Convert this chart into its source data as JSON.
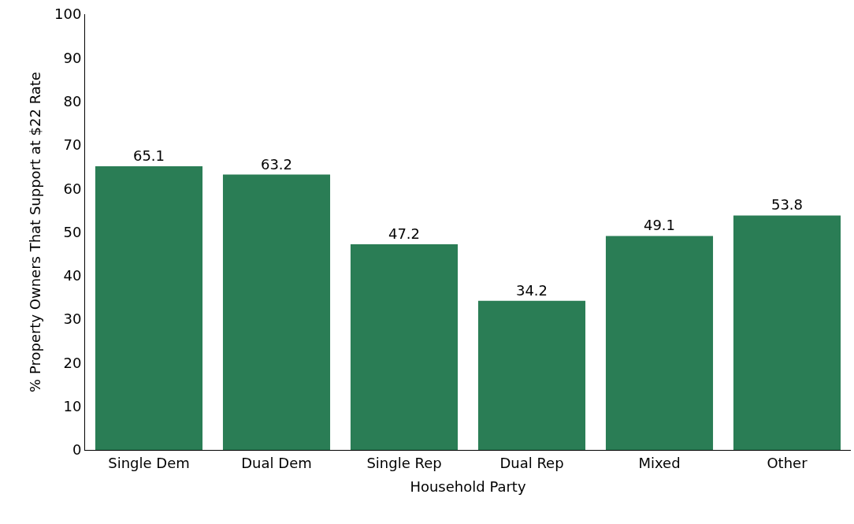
{
  "chart_data": {
    "type": "bar",
    "xlabel": "Household Party",
    "ylabel": "% Property Owners That Support at $22 Rate",
    "categories": [
      "Single Dem",
      "Dual Dem",
      "Single Rep",
      "Dual Rep",
      "Mixed",
      "Other"
    ],
    "values": [
      65.1,
      63.2,
      47.2,
      34.2,
      49.1,
      53.8
    ],
    "color": "#2a7d55",
    "ylim": [
      0,
      100
    ],
    "yticks": [
      0,
      10,
      20,
      30,
      40,
      50,
      60,
      70,
      80,
      90,
      100
    ],
    "grid": false,
    "data_labels": true
  }
}
